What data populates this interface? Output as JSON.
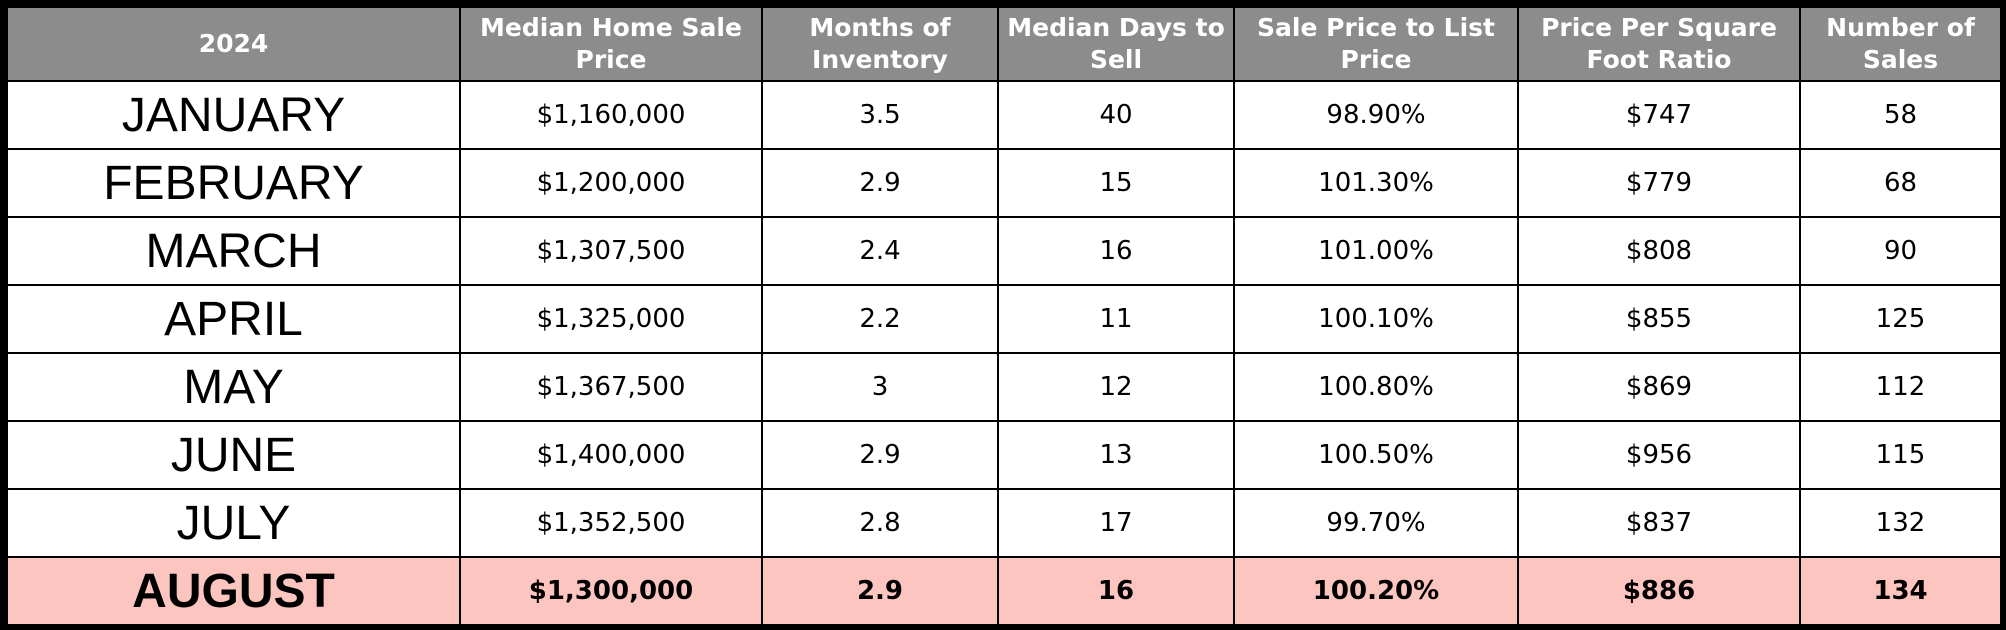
{
  "table": {
    "headers": [
      "2024",
      "Median Home Sale Price",
      "Months of Inventory",
      "Median Days to Sell",
      "Sale Price to List Price",
      "Price Per Square Foot Ratio",
      "Number of Sales"
    ],
    "rows": [
      [
        "JANUARY",
        "$1,160,000",
        "3.5",
        "40",
        "98.90%",
        "$747",
        "58"
      ],
      [
        "FEBRUARY",
        "$1,200,000",
        "2.9",
        "15",
        "101.30%",
        "$779",
        "68"
      ],
      [
        "MARCH",
        "$1,307,500",
        "2.4",
        "16",
        "101.00%",
        "$808",
        "90"
      ],
      [
        "APRIL",
        "$1,325,000",
        "2.2",
        "11",
        "100.10%",
        "$855",
        "125"
      ],
      [
        "MAY",
        "$1,367,500",
        "3",
        "12",
        "100.80%",
        "$869",
        "112"
      ],
      [
        "JUNE",
        "$1,400,000",
        "2.9",
        "13",
        "100.50%",
        "$956",
        "115"
      ],
      [
        "JULY",
        "$1,352,500",
        "2.8",
        "17",
        "99.70%",
        "$837",
        "132"
      ],
      [
        "AUGUST",
        "$1,300,000",
        "2.9",
        "16",
        "100.20%",
        "$886",
        "134"
      ]
    ],
    "highlighted_row": "AUGUST"
  },
  "colors": {
    "header_background": "#8c8c8c",
    "header_text": "#ffffff",
    "highlight_row_background": "#fcc5c0",
    "border": "#000000"
  }
}
